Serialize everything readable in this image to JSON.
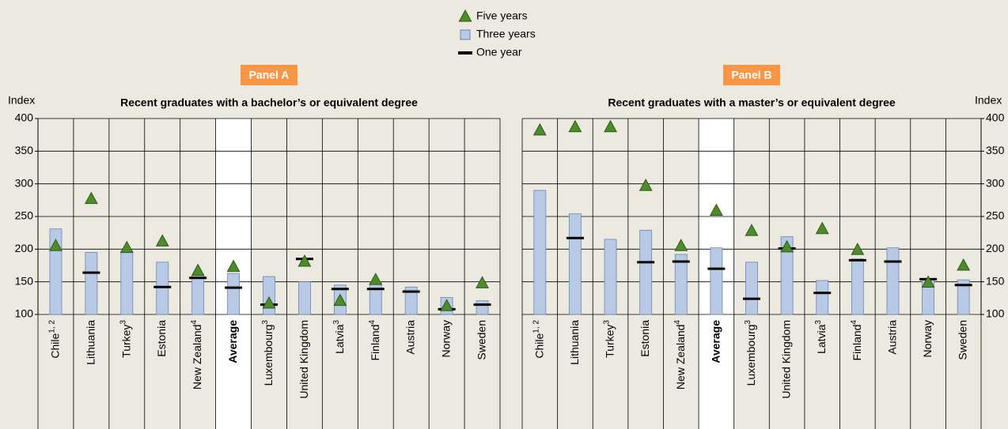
{
  "chart_data": [
    {
      "type": "bar",
      "panel": "Panel A",
      "title": "Recent graduates with a bachelor’s or equivalent degree",
      "ylabel": "Index",
      "y_axis_side": "left",
      "highlight": "Average",
      "categories": [
        "Chile",
        "Lithuania",
        "Turkey",
        "Estonia",
        "New Zealand",
        "Average",
        "Luxembourg",
        "United Kingdom",
        "Latvia",
        "Finland",
        "Austria",
        "Norway",
        "Sweden"
      ],
      "category_notes": [
        "1, 2",
        null,
        "3",
        null,
        "4",
        null,
        "3",
        null,
        "3",
        "4",
        null,
        null,
        null
      ],
      "series": [
        {
          "name": "Five years",
          "mark": "triangle",
          "color": "#4e8b2b",
          "values": [
            205,
            277,
            202,
            212,
            167,
            173,
            117,
            181,
            121,
            153,
            null,
            113,
            148
          ]
        },
        {
          "name": "Three years",
          "mark": "bar",
          "color": "#b8c9e6",
          "values": [
            231,
            195,
            197,
            180,
            160,
            163,
            158,
            150,
            145,
            148,
            142,
            126,
            121
          ]
        },
        {
          "name": "One year",
          "mark": "dash",
          "color": "#000000",
          "values": [
            null,
            164,
            null,
            142,
            156,
            141,
            115,
            185,
            139,
            139,
            135,
            108,
            115
          ]
        }
      ],
      "ylim": [
        100,
        400
      ],
      "yticks": [
        100,
        150,
        200,
        250,
        300,
        350,
        400
      ],
      "grid": true
    },
    {
      "type": "bar",
      "panel": "Panel B",
      "title": "Recent graduates with a master’s or equivalent degree",
      "ylabel": "Index",
      "y_axis_side": "right",
      "highlight": "Average",
      "categories": [
        "Chile",
        "Lithuania",
        "Turkey",
        "Estonia",
        "New Zealand",
        "Average",
        "Luxembourg",
        "United Kingdom",
        "Latvia",
        "Finland",
        "Austria",
        "Norway",
        "Sweden"
      ],
      "category_notes": [
        "1, 2",
        null,
        "3",
        null,
        "4",
        null,
        "3",
        null,
        "3",
        "4",
        null,
        null,
        null
      ],
      "series": [
        {
          "name": "Five years",
          "mark": "triangle",
          "color": "#4e8b2b",
          "values": [
            382,
            387,
            387,
            297,
            205,
            259,
            228,
            203,
            231,
            199,
            null,
            149,
            175
          ]
        },
        {
          "name": "Three years",
          "mark": "bar",
          "color": "#b8c9e6",
          "values": [
            290,
            254,
            215,
            229,
            192,
            202,
            180,
            219,
            152,
            185,
            202,
            153,
            153
          ]
        },
        {
          "name": "One year",
          "mark": "dash",
          "color": "#000000",
          "values": [
            null,
            217,
            null,
            180,
            181,
            170,
            124,
            201,
            133,
            183,
            181,
            154,
            145
          ]
        }
      ],
      "ylim": [
        100,
        400
      ],
      "yticks": [
        100,
        150,
        200,
        250,
        300,
        350,
        400
      ],
      "grid": true
    }
  ]
}
